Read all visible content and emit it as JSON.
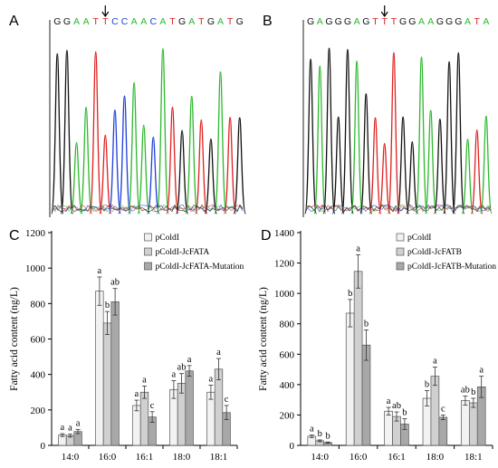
{
  "panels": {
    "A": {
      "label": "A",
      "sequence": [
        "G",
        "G",
        "A",
        "A",
        "T",
        "T",
        "C",
        "C",
        "A",
        "A",
        "C",
        "A",
        "T",
        "G",
        "A",
        "T",
        "G",
        "A",
        "T",
        "G"
      ],
      "arrow_index": 5
    },
    "B": {
      "label": "B",
      "sequence": [
        "G",
        "A",
        "G",
        "G",
        "G",
        "A",
        "G",
        "T",
        "T",
        "T",
        "G",
        "G",
        "A",
        "A",
        "G",
        "G",
        "G",
        "A",
        "T",
        "A"
      ],
      "arrow_index": 8
    },
    "C": {
      "label": "C"
    },
    "D": {
      "label": "D"
    }
  },
  "base_colors": {
    "A": "#2eb82e",
    "C": "#1f3fd6",
    "G": "#111111",
    "T": "#e02020"
  },
  "bar_colors": [
    "#f2f2f2",
    "#d0d0d0",
    "#a8a8a8"
  ],
  "chart_data": [
    {
      "type": "bar",
      "panel": "C",
      "categories": [
        "14:0",
        "16:0",
        "16:1",
        "18:0",
        "18:1"
      ],
      "series": [
        {
          "name": "pColdI",
          "values": [
            58,
            870,
            225,
            315,
            300
          ],
          "errors": [
            8,
            80,
            30,
            50,
            40
          ],
          "labels": [
            "a",
            "a",
            "a",
            "a",
            "a"
          ]
        },
        {
          "name": "pColdI-JcFATA",
          "values": [
            55,
            690,
            300,
            350,
            430
          ],
          "errors": [
            8,
            65,
            35,
            55,
            60
          ],
          "labels": [
            "a",
            "b",
            "a",
            "ab",
            "a"
          ]
        },
        {
          "name": "pColdI-JcFATA-Mutation",
          "values": [
            78,
            810,
            160,
            420,
            185
          ],
          "errors": [
            12,
            75,
            30,
            30,
            40
          ],
          "labels": [
            "a",
            "ab",
            "c",
            "a",
            "c"
          ]
        }
      ],
      "title": "",
      "ylabel": "Fatty acid content (ng/L)",
      "ylim": [
        0,
        1200
      ],
      "yticks": [
        0,
        200,
        400,
        600,
        800,
        1000,
        1200
      ],
      "legend": "top-right"
    },
    {
      "type": "bar",
      "panel": "D",
      "categories": [
        "14:0",
        "16:0",
        "16:1",
        "18:0",
        "18:1"
      ],
      "series": [
        {
          "name": "pColdI",
          "values": [
            60,
            870,
            225,
            310,
            295
          ],
          "errors": [
            8,
            90,
            25,
            50,
            30
          ],
          "labels": [
            "a",
            "b",
            "a",
            "b",
            "ab"
          ]
        },
        {
          "name": "pColdI-JcFATB",
          "values": [
            30,
            1145,
            190,
            455,
            280
          ],
          "errors": [
            6,
            110,
            30,
            60,
            30
          ],
          "labels": [
            "b",
            "a",
            "ab",
            "a",
            "b"
          ]
        },
        {
          "name": "pColdI-JcFATB-Mutation",
          "values": [
            18,
            660,
            140,
            185,
            385
          ],
          "errors": [
            4,
            100,
            35,
            15,
            70
          ],
          "labels": [
            "b",
            "b",
            "b",
            "c",
            "a"
          ]
        }
      ],
      "title": "",
      "ylabel": "Fatty acid content (ng/L)",
      "ylim": [
        0,
        1400
      ],
      "yticks": [
        0,
        200,
        400,
        600,
        800,
        1000,
        1200,
        1400
      ],
      "legend": "top-right"
    }
  ]
}
